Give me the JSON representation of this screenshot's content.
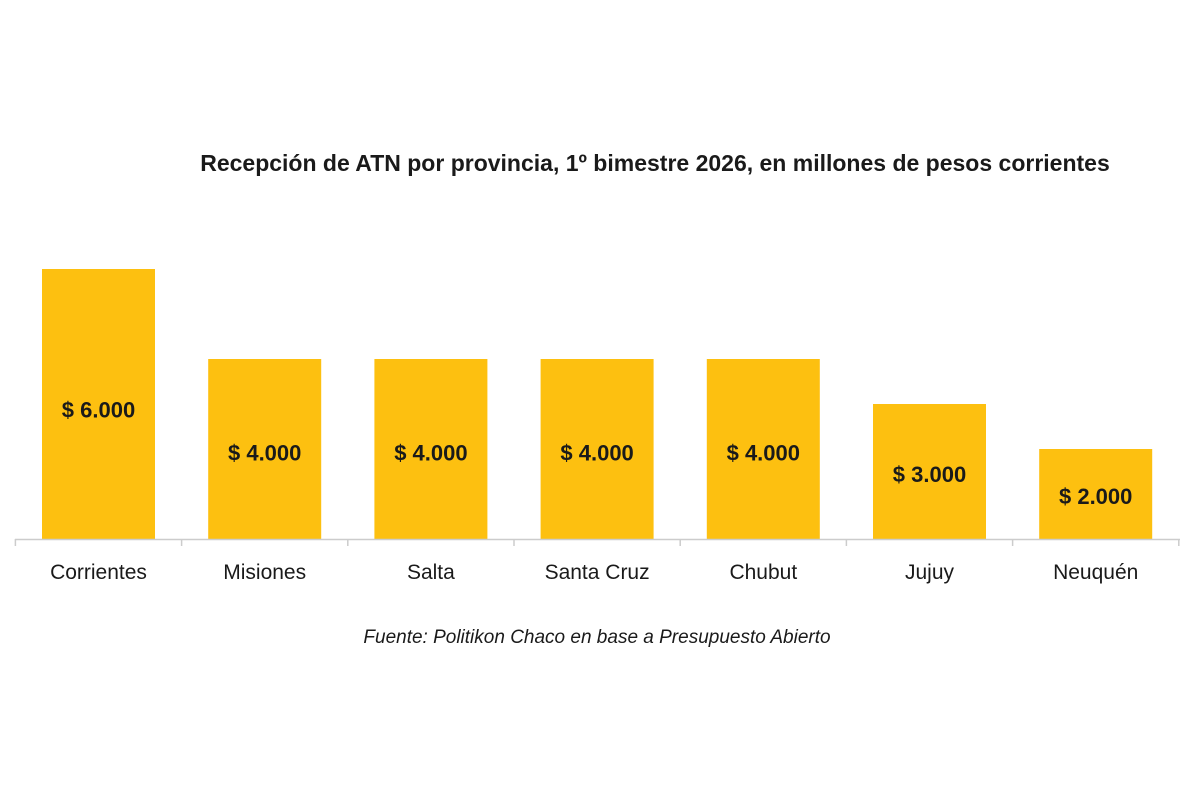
{
  "chart_data": {
    "type": "bar",
    "title": "Recepción de ATN por provincia, 1º bimestre 2026, en millones de pesos corrientes",
    "categories": [
      "Corrientes",
      "Misiones",
      "Salta",
      "Santa Cruz",
      "Chubut",
      "Jujuy",
      "Neuquén"
    ],
    "values": [
      6000,
      4000,
      4000,
      4000,
      4000,
      3000,
      2000
    ],
    "data_labels": [
      "$ 6.000",
      "$ 4.000",
      "$ 4.000",
      "$ 4.000",
      "$ 4.000",
      "$ 3.000",
      "$ 2.000"
    ],
    "xlabel": "",
    "ylabel": "",
    "ylim": [
      0,
      6000
    ],
    "grid": false,
    "legend": "none",
    "bar_color": "#fdc010",
    "axis_color": "#cccccc",
    "source": "Fuente: Politikon Chaco en base a Presupuesto Abierto"
  }
}
